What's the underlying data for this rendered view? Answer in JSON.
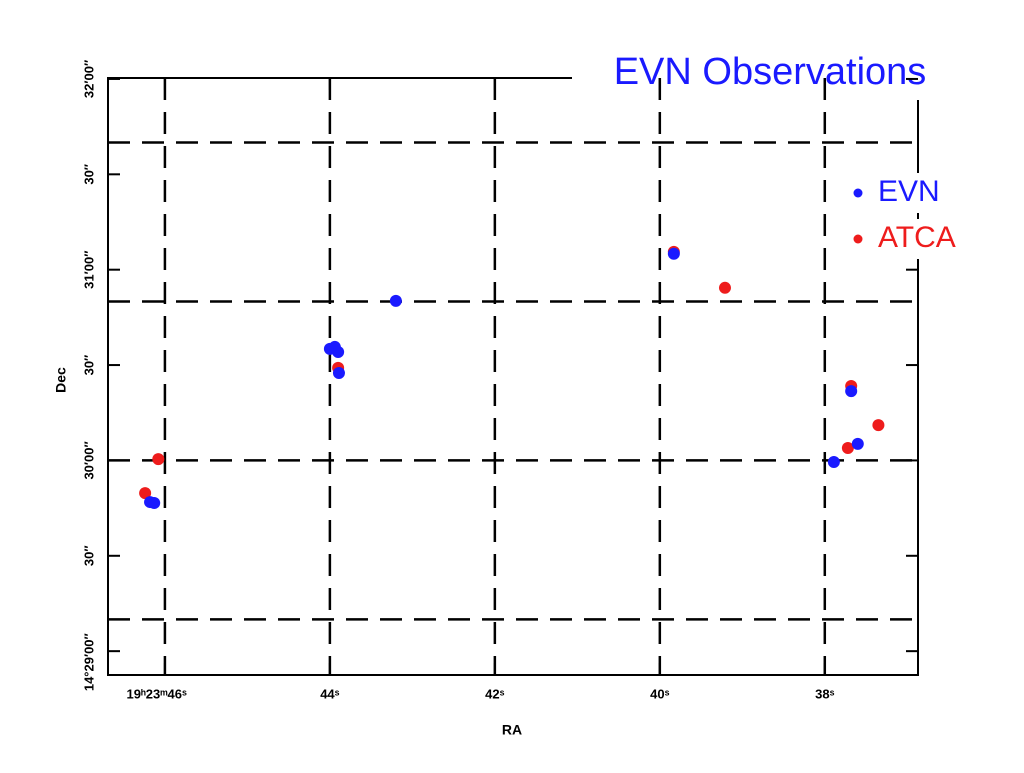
{
  "chart_data": {
    "type": "scatter",
    "title": "EVN Observations",
    "x_label": "RA",
    "y_label": "Dec",
    "xlim": [
      46.69,
      36.87
    ],
    "ylim": [
      -7.5,
      180.3
    ],
    "xticks": [
      {
        "value": 46,
        "label": "19ʰ23ᵐ46ˢ"
      },
      {
        "value": 44,
        "label": "44ˢ"
      },
      {
        "value": 42,
        "label": "42ˢ"
      },
      {
        "value": 40,
        "label": "40ˢ"
      },
      {
        "value": 38,
        "label": "38ˢ"
      }
    ],
    "yticks": [
      {
        "value": 0,
        "label": "14°29′00″"
      },
      {
        "value": 30,
        "label": "30″"
      },
      {
        "value": 60,
        "label": "30′00″"
      },
      {
        "value": 90,
        "label": "30″"
      },
      {
        "value": 120,
        "label": "31′00″"
      },
      {
        "value": 150,
        "label": "30″"
      },
      {
        "value": 180,
        "label": "32′00″"
      }
    ],
    "xgrid": true,
    "hlines": [
      10,
      60,
      110,
      160
    ],
    "legend": "top-right",
    "series": [
      {
        "name": "ATCA",
        "color": "#ee1c1c",
        "x": [
          46.24,
          46.08,
          43.9,
          39.83,
          39.21,
          37.68,
          37.35,
          37.72
        ],
        "values": [
          49.7,
          60.4,
          89.1,
          125.6,
          114.3,
          83.4,
          71.1,
          63.9
        ]
      },
      {
        "name": "EVN",
        "color": "#1a1aff",
        "x": [
          46.18,
          46.13,
          44.0,
          43.94,
          43.9,
          43.89,
          43.2,
          39.83,
          37.68,
          37.89,
          37.6
        ],
        "values": [
          46.9,
          46.6,
          95.1,
          95.7,
          94.1,
          87.5,
          110.2,
          125.0,
          81.8,
          59.5,
          65.2
        ]
      }
    ]
  }
}
